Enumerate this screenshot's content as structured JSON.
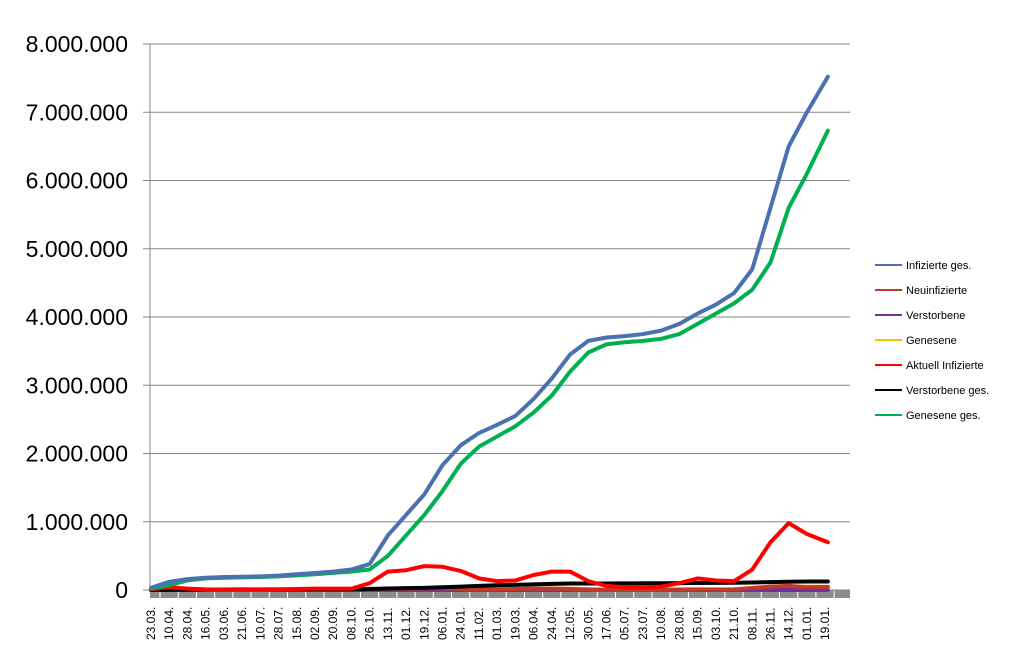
{
  "chart_data": {
    "type": "line",
    "title": "",
    "xlabel": "",
    "ylabel": "",
    "ylim": [
      0,
      8000000
    ],
    "grid": true,
    "legend_position": "right",
    "y_ticks": [
      "0",
      "1.000.000",
      "2.000.000",
      "3.000.000",
      "4.000.000",
      "5.000.000",
      "6.000.000",
      "7.000.000",
      "8.000.000"
    ],
    "x": [
      "23.03.",
      "10.04.",
      "28.04.",
      "16.05.",
      "03.06.",
      "21.06.",
      "10.07.",
      "28.07.",
      "15.08.",
      "02.09.",
      "20.09.",
      "08.10.",
      "26.10.",
      "13.11.",
      "01.12.",
      "19.12.",
      "06.01.",
      "24.01.",
      "11.02.",
      "01.03.",
      "19.03.",
      "06.04.",
      "24.04.",
      "12.05.",
      "30.05.",
      "17.06.",
      "05.07.",
      "23.07.",
      "10.08.",
      "28.08.",
      "15.09.",
      "03.10.",
      "21.10.",
      "08.11.",
      "26.11.",
      "14.12.",
      "01.01.",
      "19.01."
    ],
    "series": [
      {
        "name": "Infizierte ges.",
        "color": "#4a72b0",
        "values": [
          30000,
          120000,
          160000,
          180000,
          190000,
          195000,
          200000,
          210000,
          230000,
          250000,
          270000,
          300000,
          380000,
          800000,
          1100000,
          1400000,
          1830000,
          2120000,
          2300000,
          2420000,
          2550000,
          2800000,
          3100000,
          3450000,
          3650000,
          3700000,
          3720000,
          3750000,
          3800000,
          3900000,
          4050000,
          4180000,
          4350000,
          4700000,
          5600000,
          6500000,
          7000000,
          7520000
        ]
      },
      {
        "name": "Neuinfizierte",
        "color": "#c0392b",
        "values": [
          5000,
          5000,
          3000,
          1000,
          1000,
          1000,
          1000,
          1000,
          1500,
          2000,
          2000,
          4000,
          10000,
          20000,
          20000,
          25000,
          25000,
          15000,
          10000,
          10000,
          15000,
          20000,
          20000,
          15000,
          5000,
          2000,
          2000,
          2000,
          3000,
          8000,
          10000,
          8000,
          10000,
          30000,
          50000,
          60000,
          40000,
          45000
        ]
      },
      {
        "name": "Verstorbene",
        "color": "#7030a0",
        "values": [
          200,
          300,
          200,
          100,
          50,
          30,
          20,
          20,
          20,
          20,
          30,
          40,
          100,
          300,
          500,
          700,
          800,
          600,
          400,
          300,
          300,
          300,
          300,
          300,
          200,
          100,
          50,
          50,
          50,
          80,
          100,
          100,
          150,
          300,
          500,
          700,
          600,
          500
        ]
      },
      {
        "name": "Genesene",
        "color": "#ffc000",
        "values": [
          2000,
          5000,
          6000,
          3000,
          2000,
          1000,
          1000,
          1000,
          1500,
          2000,
          2000,
          3000,
          5000,
          10000,
          15000,
          20000,
          25000,
          25000,
          20000,
          12000,
          10000,
          15000,
          20000,
          20000,
          15000,
          8000,
          3000,
          2000,
          3000,
          5000,
          8000,
          10000,
          10000,
          20000,
          30000,
          45000,
          50000,
          45000
        ]
      },
      {
        "name": "Aktuell Infizierte",
        "color": "#ff0000",
        "values": [
          10000,
          40000,
          20000,
          10000,
          5000,
          5000,
          8000,
          10000,
          15000,
          20000,
          20000,
          20000,
          100000,
          270000,
          290000,
          350000,
          340000,
          280000,
          170000,
          130000,
          140000,
          220000,
          270000,
          270000,
          130000,
          60000,
          40000,
          40000,
          50000,
          100000,
          170000,
          140000,
          130000,
          300000,
          700000,
          980000,
          820000,
          700000
        ]
      },
      {
        "name": "Verstorbene ges.",
        "color": "#000000",
        "values": [
          0,
          2000,
          5000,
          7000,
          8000,
          9000,
          9000,
          9000,
          9500,
          10000,
          10000,
          10000,
          15000,
          22000,
          28000,
          32000,
          40000,
          50000,
          60000,
          70000,
          75000,
          82000,
          90000,
          95000,
          95000,
          96000,
          97000,
          98000,
          99000,
          100000,
          102000,
          104000,
          106000,
          110000,
          115000,
          120000,
          125000,
          125000
        ]
      },
      {
        "name": "Genesene ges.",
        "color": "#00b050",
        "values": [
          20000,
          70000,
          140000,
          170000,
          180000,
          185000,
          190000,
          200000,
          215000,
          230000,
          250000,
          270000,
          300000,
          500000,
          800000,
          1100000,
          1450000,
          1850000,
          2100000,
          2250000,
          2400000,
          2600000,
          2850000,
          3200000,
          3480000,
          3600000,
          3630000,
          3650000,
          3680000,
          3750000,
          3900000,
          4050000,
          4200000,
          4400000,
          4800000,
          5600000,
          6100000,
          6730000
        ]
      }
    ]
  }
}
